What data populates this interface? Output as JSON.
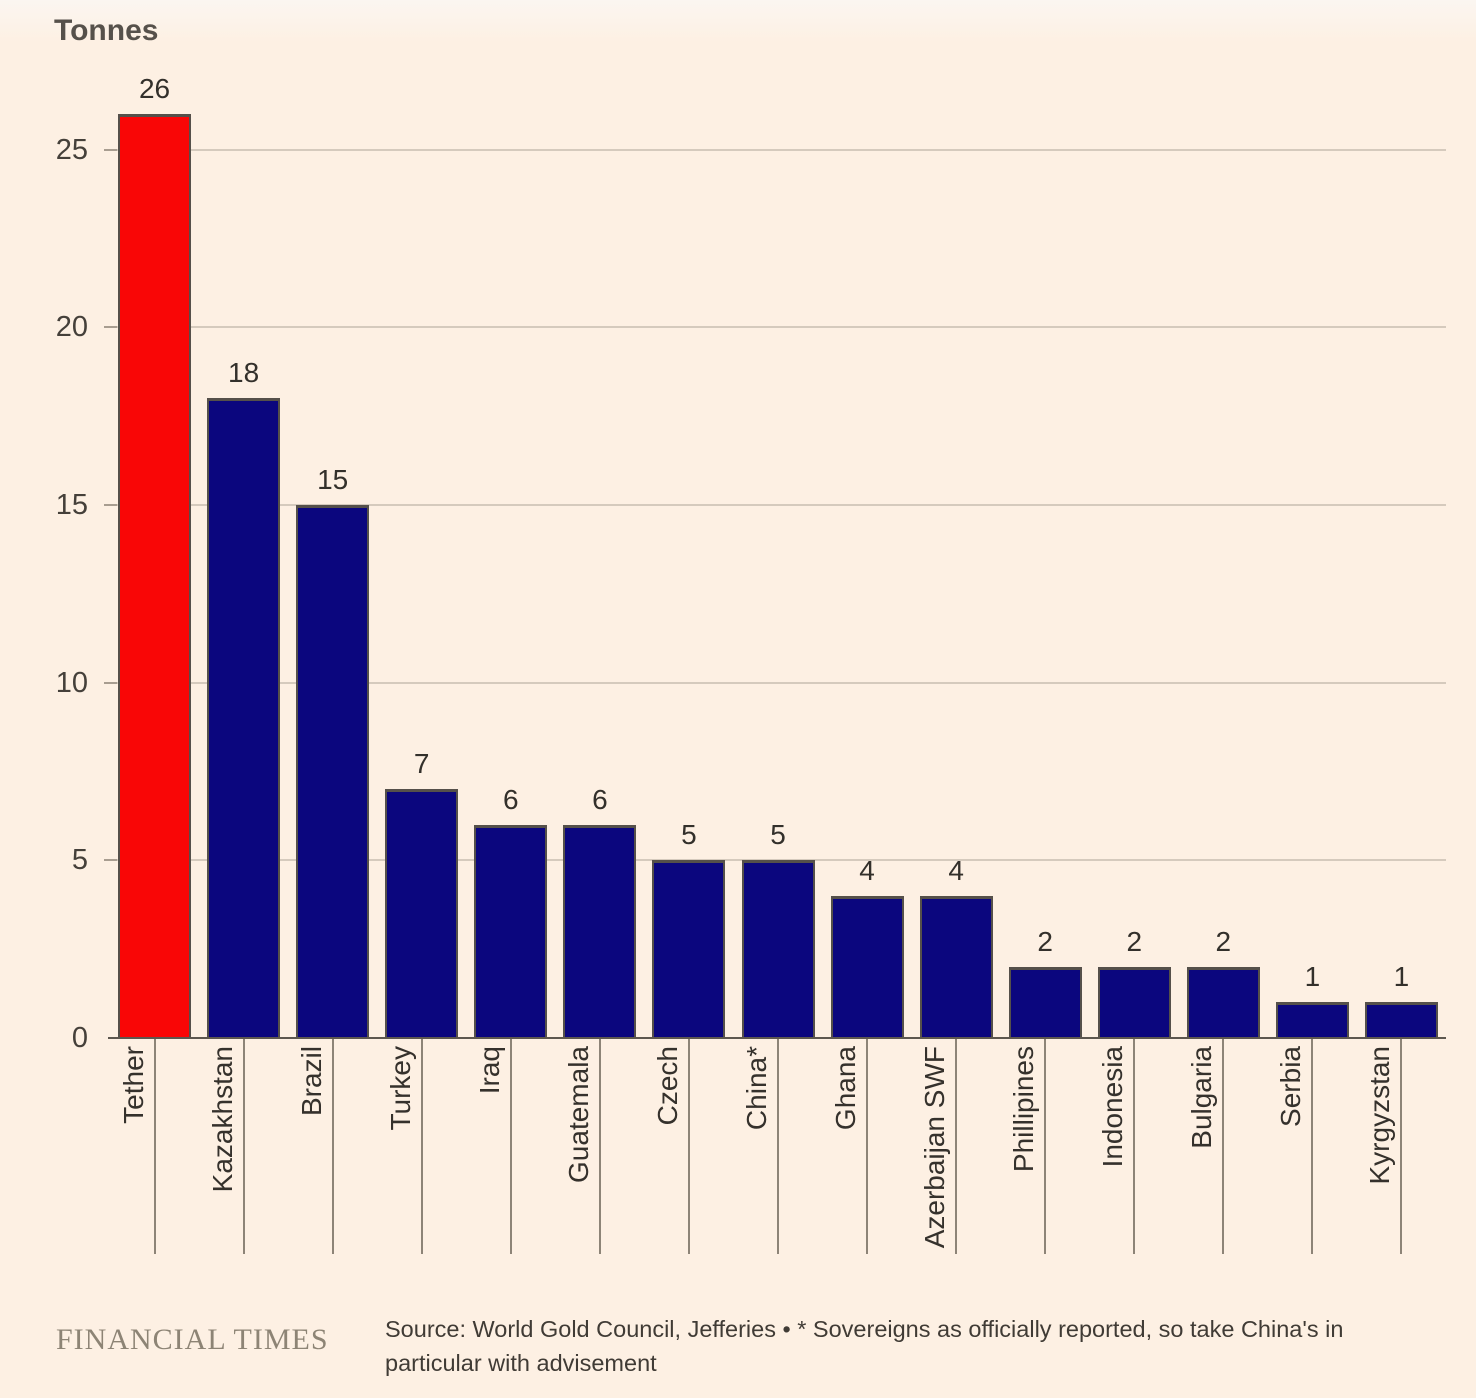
{
  "title": "Tonnes",
  "footer": {
    "logo": "FINANCIAL TIMES",
    "source_line1": "Source: World Gold Council, Jefferies • * Sovereigns as officially reported, so take China's in",
    "source_line2": "particular with advisement"
  },
  "chart_data": {
    "type": "bar",
    "title": "Tonnes",
    "ylabel": "Tonnes",
    "categories": [
      "Tether",
      "Kazakhstan",
      "Brazil",
      "Turkey",
      "Iraq",
      "Guatemala",
      "Czech",
      "China*",
      "Ghana",
      "Azerbaijan SWF",
      "Phillipines",
      "Indonesia",
      "Bulgaria",
      "Serbia",
      "Kyrgyzstan"
    ],
    "values": [
      26,
      18,
      15,
      7,
      6,
      6,
      5,
      5,
      4,
      4,
      2,
      2,
      2,
      1,
      1
    ],
    "yticks": [
      0,
      5,
      10,
      15,
      20,
      25
    ],
    "ylim": [
      0,
      26
    ],
    "grid": true,
    "value_labels": true,
    "highlight_category": "Tether",
    "highlight_color": "#f90606",
    "bar_color": "#0b067e",
    "background_color": "#fdf0e3"
  }
}
